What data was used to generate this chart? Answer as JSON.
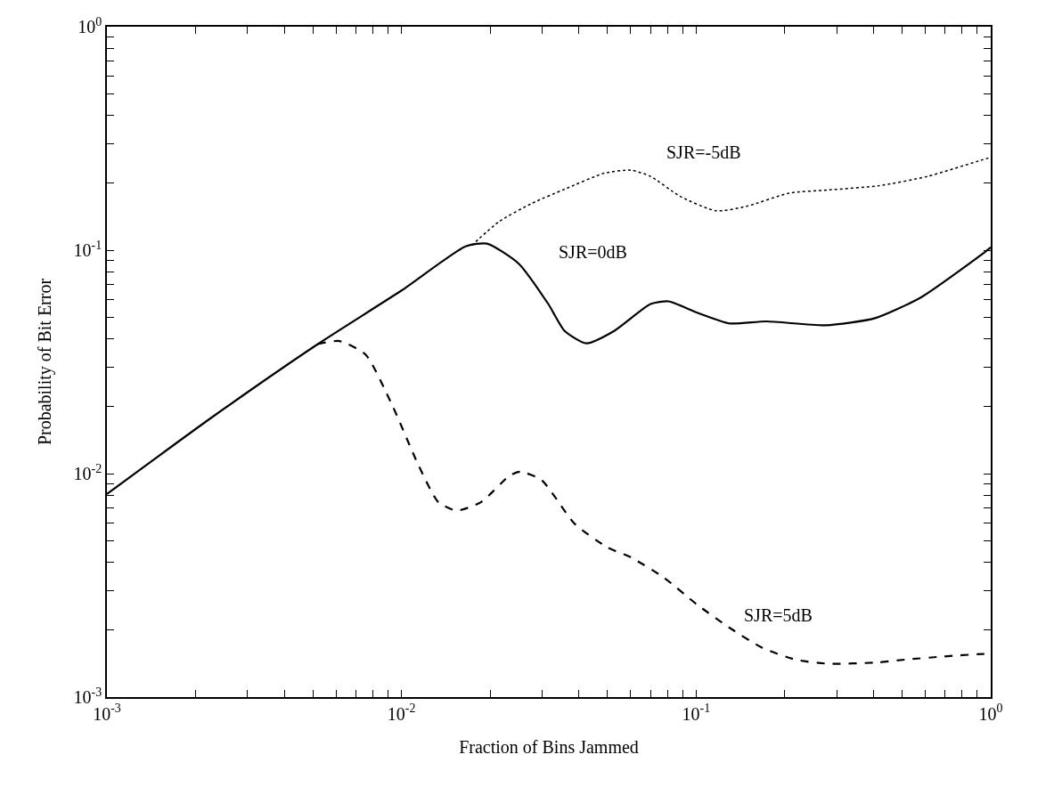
{
  "chart_data": {
    "type": "line",
    "xlabel": "Fraction of Bins Jammed",
    "ylabel": "Probability of Bit Error",
    "log": "xy",
    "grid": false,
    "legend": false,
    "xlim": [
      0.001,
      1
    ],
    "ylim": [
      0.001,
      1
    ],
    "xticks": [
      {
        "value": 0.001,
        "label": "10$^{-3}$"
      },
      {
        "value": 0.002,
        "label": null
      },
      {
        "value": 0.003,
        "label": null
      },
      {
        "value": 0.004,
        "label": null
      },
      {
        "value": 0.005,
        "label": null
      },
      {
        "value": 0.006,
        "label": null
      },
      {
        "value": 0.007,
        "label": null
      },
      {
        "value": 0.008,
        "label": null
      },
      {
        "value": 0.009,
        "label": null
      },
      {
        "value": 0.01,
        "label": "10$^{-2}$"
      },
      {
        "value": 0.02,
        "label": null
      },
      {
        "value": 0.03,
        "label": null
      },
      {
        "value": 0.04,
        "label": null
      },
      {
        "value": 0.05,
        "label": null
      },
      {
        "value": 0.06,
        "label": null
      },
      {
        "value": 0.07,
        "label": null
      },
      {
        "value": 0.08,
        "label": null
      },
      {
        "value": 0.09,
        "label": null
      },
      {
        "value": 0.1,
        "label": "10$^{-1}$"
      },
      {
        "value": 0.2,
        "label": null
      },
      {
        "value": 0.3,
        "label": null
      },
      {
        "value": 0.4,
        "label": null
      },
      {
        "value": 0.5,
        "label": null
      },
      {
        "value": 0.6,
        "label": null
      },
      {
        "value": 0.7,
        "label": null
      },
      {
        "value": 0.8,
        "label": null
      },
      {
        "value": 0.9,
        "label": null
      },
      {
        "value": 1,
        "label": "10$^{0}$"
      }
    ],
    "yticks": [
      {
        "value": 0.001,
        "label": "10$^{-3}$"
      },
      {
        "value": 0.002,
        "label": null
      },
      {
        "value": 0.003,
        "label": null
      },
      {
        "value": 0.004,
        "label": null
      },
      {
        "value": 0.005,
        "label": null
      },
      {
        "value": 0.006,
        "label": null
      },
      {
        "value": 0.007,
        "label": null
      },
      {
        "value": 0.008,
        "label": null
      },
      {
        "value": 0.009,
        "label": null
      },
      {
        "value": 0.01,
        "label": "10$^{-2}$"
      },
      {
        "value": 0.02,
        "label": null
      },
      {
        "value": 0.03,
        "label": null
      },
      {
        "value": 0.04,
        "label": null
      },
      {
        "value": 0.05,
        "label": null
      },
      {
        "value": 0.06,
        "label": null
      },
      {
        "value": 0.07,
        "label": null
      },
      {
        "value": 0.08,
        "label": null
      },
      {
        "value": 0.09,
        "label": null
      },
      {
        "value": 0.1,
        "label": "10$^{-1}$"
      },
      {
        "value": 0.2,
        "label": null
      },
      {
        "value": 0.3,
        "label": null
      },
      {
        "value": 0.4,
        "label": null
      },
      {
        "value": 0.5,
        "label": null
      },
      {
        "value": 0.6,
        "label": null
      },
      {
        "value": 0.7,
        "label": null
      },
      {
        "value": 0.8,
        "label": null
      },
      {
        "value": 0.9,
        "label": null
      },
      {
        "value": 1,
        "label": "10$^{0}$"
      }
    ],
    "series": [
      {
        "name": "SJR=-5dB",
        "color": "#000000",
        "line_style": "dotted",
        "x": [
          0.0173,
          0.0214,
          0.0277,
          0.0358,
          0.0488,
          0.06,
          0.07,
          0.0883,
          0.117,
          0.148,
          0.207,
          0.282,
          0.415,
          0.611,
          0.94,
          1
        ],
        "values": [
          0.105,
          0.134,
          0.162,
          0.1875,
          0.221,
          0.228,
          0.214,
          0.174,
          0.15,
          0.157,
          0.18,
          0.186,
          0.194,
          0.214,
          0.254,
          0.26
        ]
      },
      {
        "name": "SJR=0dB",
        "color": "#000000",
        "line_style": "solid",
        "x": [
          0.001,
          0.00225,
          0.0052,
          0.01,
          0.0165,
          0.0195,
          0.025,
          0.0315,
          0.0358,
          0.0424,
          0.0527,
          0.07,
          0.0807,
          0.1005,
          0.13,
          0.173,
          0.275,
          0.405,
          0.58,
          0.94,
          1
        ],
        "values": [
          0.0081,
          0.0177,
          0.038,
          0.066,
          0.104,
          0.107,
          0.087,
          0.0574,
          0.0435,
          0.0383,
          0.0435,
          0.0574,
          0.059,
          0.0526,
          0.047,
          0.048,
          0.0461,
          0.0496,
          0.0615,
          0.0965,
          0.103
        ]
      },
      {
        "name": "SJR=5dB",
        "color": "#000000",
        "line_style": "dashed",
        "x": [
          0.0052,
          0.00615,
          0.00755,
          0.00929,
          0.01142,
          0.01334,
          0.0154,
          0.0186,
          0.0233,
          0.0253,
          0.0299,
          0.0387,
          0.0501,
          0.06,
          0.0776,
          0.1005,
          0.13,
          0.168,
          0.218,
          0.282,
          0.415,
          0.51,
          0.695,
          0.94,
          1
        ],
        "values": [
          0.038,
          0.0392,
          0.0341,
          0.0203,
          0.0109,
          0.00745,
          0.00683,
          0.00745,
          0.0098,
          0.0102,
          0.00935,
          0.00596,
          0.00467,
          0.00422,
          0.00343,
          0.0026,
          0.00204,
          0.00166,
          0.00147,
          0.00141,
          0.00143,
          0.00147,
          0.00152,
          0.00156,
          0.00156
        ]
      }
    ]
  }
}
